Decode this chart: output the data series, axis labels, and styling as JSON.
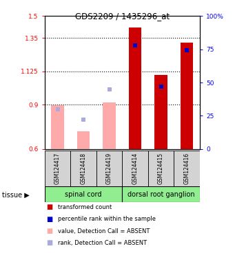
{
  "title": "GDS2209 / 1435296_at",
  "samples": [
    "GSM124417",
    "GSM124418",
    "GSM124419",
    "GSM124414",
    "GSM124415",
    "GSM124416"
  ],
  "bar_values": [
    0.895,
    0.72,
    0.915,
    1.42,
    1.1,
    1.32
  ],
  "bar_absent": [
    true,
    true,
    true,
    false,
    false,
    false
  ],
  "rank_values": [
    30,
    22,
    45,
    78,
    47,
    74
  ],
  "rank_absent": [
    true,
    true,
    true,
    false,
    false,
    false
  ],
  "ylim_left": [
    0.6,
    1.5
  ],
  "ylim_right": [
    0,
    100
  ],
  "yticks_left": [
    0.6,
    0.9,
    1.125,
    1.35,
    1.5
  ],
  "ytick_labels_left": [
    "0.6",
    "0.9",
    "1.125",
    "1.35",
    "1.5"
  ],
  "yticks_right": [
    0,
    25,
    50,
    75,
    100
  ],
  "ytick_labels_right": [
    "0",
    "25",
    "50",
    "75",
    "100%"
  ],
  "bar_color_present": "#cc0000",
  "bar_color_absent": "#ffaaaa",
  "rank_color_present": "#0000cc",
  "rank_color_absent": "#aaaadd",
  "legend_items": [
    {
      "color": "#cc0000",
      "label": "transformed count"
    },
    {
      "color": "#0000cc",
      "label": "percentile rank within the sample"
    },
    {
      "color": "#ffaaaa",
      "label": "value, Detection Call = ABSENT"
    },
    {
      "color": "#aaaadd",
      "label": "rank, Detection Call = ABSENT"
    }
  ],
  "spinal_cord_label": "spinal cord",
  "drg_label": "dorsal root ganglion",
  "tissue_label": "tissue",
  "group_color": "#90ee90",
  "sample_box_color": "#d3d3d3",
  "bar_width": 0.5
}
